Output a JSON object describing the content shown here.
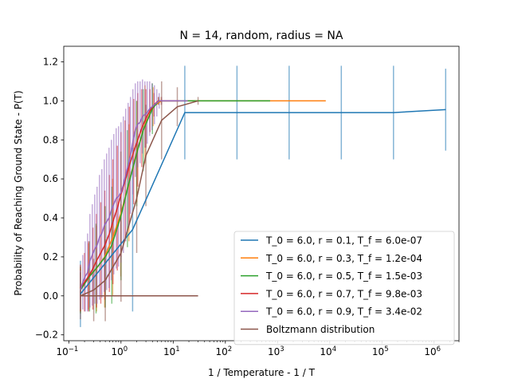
{
  "chart_data": {
    "type": "line",
    "title": "N = 14, random, radius = NA",
    "xlabel": "1 / Temperature - 1 / T",
    "ylabel": "Probability of Reaching Ground State - P(T)",
    "xscale": "log",
    "xlim": [
      0.08,
      3000000
    ],
    "ylim": [
      -0.23,
      1.28
    ],
    "x_ticks": [
      {
        "value": 0.1,
        "base": "10",
        "exp": "−1"
      },
      {
        "value": 1,
        "base": "10",
        "exp": "0"
      },
      {
        "value": 10,
        "base": "10",
        "exp": "1"
      },
      {
        "value": 100,
        "base": "10",
        "exp": "2"
      },
      {
        "value": 1000,
        "base": "10",
        "exp": "3"
      },
      {
        "value": 10000,
        "base": "10",
        "exp": "4"
      },
      {
        "value": 100000,
        "base": "10",
        "exp": "5"
      },
      {
        "value": 1000000,
        "base": "10",
        "exp": "6"
      }
    ],
    "y_ticks": [
      "−0.2",
      "0.0",
      "0.2",
      "0.4",
      "0.6",
      "0.8",
      "1.0",
      "1.2"
    ],
    "y_tick_values": [
      -0.2,
      0.0,
      0.2,
      0.4,
      0.6,
      0.8,
      1.0,
      1.2
    ],
    "grid": false,
    "legend_position": "lower-right",
    "series": [
      {
        "name": "T_0 = 6.0, r = 0.1, T_f = 6.0e-07",
        "color": "#1f77b4",
        "x": [
          0.167,
          1.67,
          16.7,
          167,
          1667,
          16667,
          166667,
          1666667
        ],
        "y": [
          0.01,
          0.34,
          0.94,
          0.94,
          0.94,
          0.94,
          0.94,
          0.955
        ],
        "err": [
          0.17,
          0.42,
          0.24,
          0.24,
          0.24,
          0.24,
          0.24,
          0.21
        ]
      },
      {
        "name": "T_0 = 6.0, r = 0.3, T_f = 1.2e-04",
        "color": "#ff7f0e",
        "x": [
          0.167,
          0.238,
          0.34,
          0.486,
          0.694,
          0.992,
          1.42,
          2.02,
          2.89,
          4.13,
          5.9,
          8.43,
          26,
          100,
          500,
          2000,
          8400
        ],
        "y": [
          0.03,
          0.1,
          0.14,
          0.2,
          0.3,
          0.42,
          0.58,
          0.74,
          0.88,
          0.97,
          1.0,
          1.0,
          1.0,
          1.0,
          1.0,
          1.0,
          1.0
        ],
        "err": [
          0.11,
          0.17,
          0.22,
          0.26,
          0.3,
          0.32,
          0.3,
          0.26,
          0.2,
          0.1,
          0.02,
          0,
          0,
          0,
          0,
          0,
          0
        ]
      },
      {
        "name": "T_0 = 6.0, r = 0.5, T_f = 1.5e-03",
        "color": "#2ca02c",
        "x": [
          0.167,
          0.25,
          0.333,
          0.5,
          0.667,
          1.0,
          1.33,
          2.0,
          2.67,
          4.0,
          5.33,
          8.0,
          16,
          64,
          256,
          720
        ],
        "y": [
          0.03,
          0.1,
          0.14,
          0.2,
          0.26,
          0.41,
          0.55,
          0.73,
          0.85,
          0.96,
          1.0,
          1.0,
          1.0,
          1.0,
          1.0,
          1.0
        ],
        "err": [
          0.12,
          0.18,
          0.23,
          0.26,
          0.3,
          0.33,
          0.3,
          0.27,
          0.21,
          0.13,
          0.02,
          0,
          0,
          0,
          0,
          0
        ]
      },
      {
        "name": "T_0 = 6.0, r = 0.7, T_f = 9.8e-03",
        "color": "#d62728",
        "x": [
          0.167,
          0.2,
          0.24,
          0.29,
          0.34,
          0.41,
          0.49,
          0.6,
          0.7,
          0.85,
          1.0,
          1.2,
          1.45,
          1.75,
          2.1,
          2.5,
          3.0,
          3.6,
          4.3,
          5.2,
          6.2,
          7.5,
          9.0,
          11,
          13
        ],
        "y": [
          0.04,
          0.07,
          0.1,
          0.14,
          0.18,
          0.22,
          0.26,
          0.32,
          0.38,
          0.45,
          0.52,
          0.59,
          0.67,
          0.74,
          0.8,
          0.86,
          0.91,
          0.95,
          0.98,
          1.0,
          1.0,
          1.0,
          1.0,
          1.0,
          1.0
        ],
        "err": [
          0.12,
          0.15,
          0.18,
          0.21,
          0.24,
          0.26,
          0.28,
          0.3,
          0.32,
          0.32,
          0.32,
          0.31,
          0.3,
          0.27,
          0.24,
          0.2,
          0.15,
          0.11,
          0.06,
          0.02,
          0,
          0,
          0,
          0,
          0
        ]
      },
      {
        "name": "T_0 = 6.0, r = 0.9, T_f = 3.4e-02",
        "color": "#9467bd",
        "x": [
          0.167,
          0.185,
          0.206,
          0.229,
          0.254,
          0.282,
          0.314,
          0.348,
          0.387,
          0.43,
          0.478,
          0.531,
          0.59,
          0.655,
          0.728,
          0.809,
          0.899,
          0.999,
          1.11,
          1.23,
          1.37,
          1.52,
          1.69,
          1.88,
          2.09,
          2.32,
          2.58,
          2.87,
          3.18,
          3.54,
          3.93,
          4.37,
          4.85,
          5.39,
          5.99,
          6.65,
          7.4,
          8.2,
          9.1,
          10.1,
          11.3,
          12.5,
          13.9,
          15.4,
          17.1,
          19.0
        ],
        "y": [
          0.03,
          0.07,
          0.1,
          0.12,
          0.18,
          0.21,
          0.24,
          0.26,
          0.3,
          0.32,
          0.36,
          0.38,
          0.4,
          0.44,
          0.47,
          0.5,
          0.51,
          0.53,
          0.57,
          0.62,
          0.67,
          0.72,
          0.79,
          0.85,
          0.88,
          0.89,
          0.92,
          0.93,
          0.94,
          0.96,
          0.97,
          0.98,
          0.99,
          1.0,
          1.0,
          1.0,
          1.0,
          1.0,
          1.0,
          1.0,
          1.0,
          1.0,
          1.0,
          1.0,
          1.0,
          1.0
        ],
        "err": [
          0.1,
          0.14,
          0.18,
          0.2,
          0.24,
          0.26,
          0.28,
          0.3,
          0.32,
          0.33,
          0.34,
          0.35,
          0.36,
          0.36,
          0.36,
          0.36,
          0.36,
          0.36,
          0.35,
          0.34,
          0.32,
          0.3,
          0.27,
          0.24,
          0.22,
          0.21,
          0.19,
          0.17,
          0.16,
          0.14,
          0.12,
          0.1,
          0.07,
          0.04,
          0.02,
          0,
          0,
          0,
          0,
          0,
          0,
          0,
          0,
          0,
          0,
          0
        ]
      },
      {
        "name": "Boltzmann distribution",
        "color": "#8c564b",
        "x": [
          0.167,
          0.3,
          0.5,
          1.0,
          2.0,
          3.0,
          6.0,
          12.0,
          30.0
        ],
        "y": [
          0.0,
          0.03,
          0.08,
          0.22,
          0.5,
          0.72,
          0.9,
          0.97,
          1.0
        ],
        "err": [
          0.12,
          0.16,
          0.21,
          0.25,
          0.28,
          0.26,
          0.2,
          0.1,
          0.02
        ],
        "baseline_x": [
          0.167,
          30.0
        ],
        "baseline_y": [
          0.0,
          0.0
        ]
      }
    ]
  }
}
